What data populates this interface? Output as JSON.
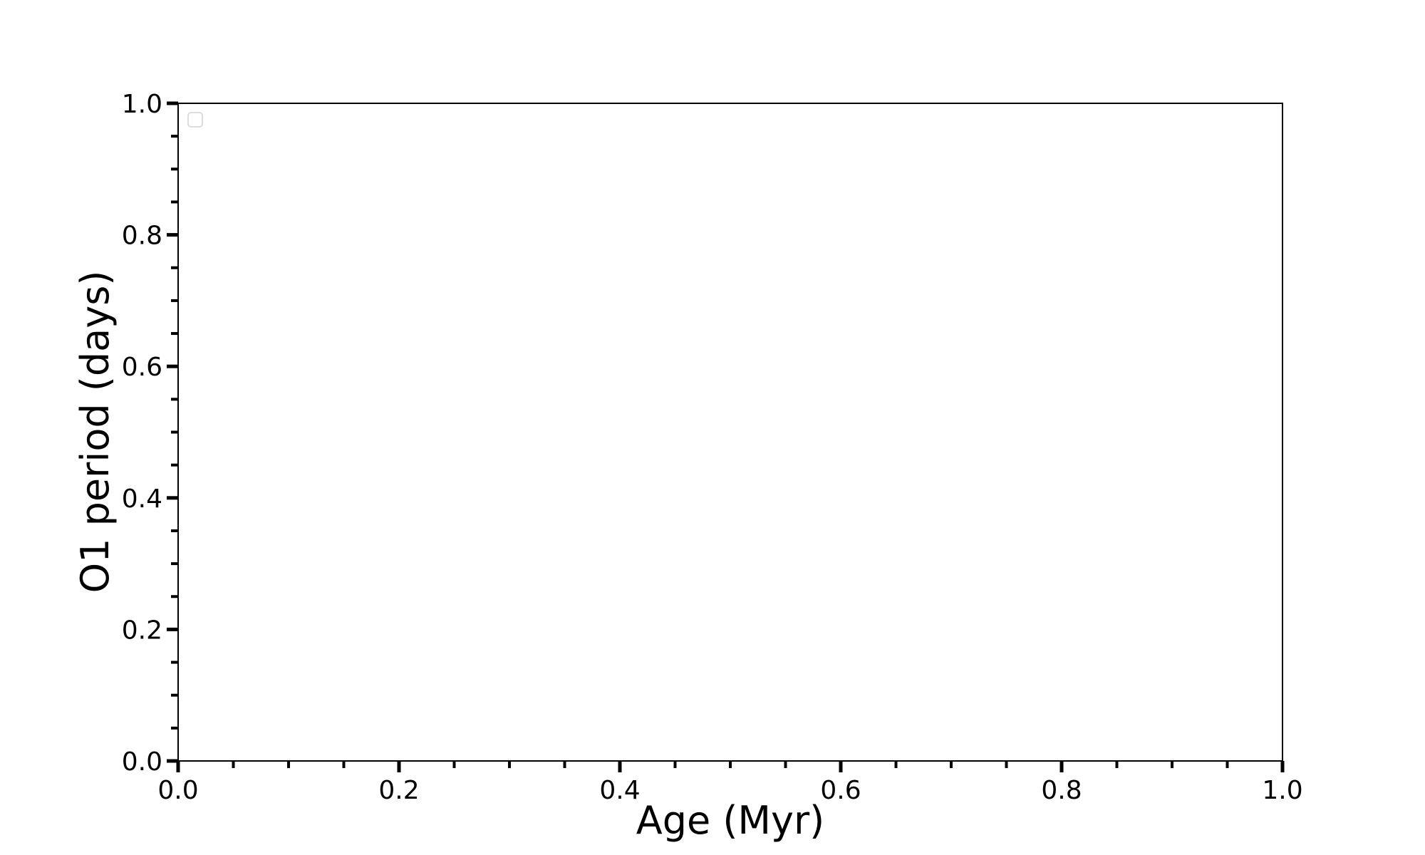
{
  "chart_data": {
    "type": "line",
    "title": "",
    "xlabel": "Age (Myr)",
    "ylabel": "O1 period (days)",
    "xlim": [
      0.0,
      1.0
    ],
    "ylim": [
      0.0,
      1.0
    ],
    "x_ticks": [
      "0.0",
      "0.2",
      "0.4",
      "0.6",
      "0.8",
      "1.0"
    ],
    "y_ticks": [
      "0.0",
      "0.2",
      "0.4",
      "0.6",
      "0.8",
      "1.0"
    ],
    "x_minor_step": 0.05,
    "y_minor_step": 0.05,
    "grid": false,
    "legend": {
      "placement": "top-left",
      "entries": []
    },
    "series": []
  }
}
